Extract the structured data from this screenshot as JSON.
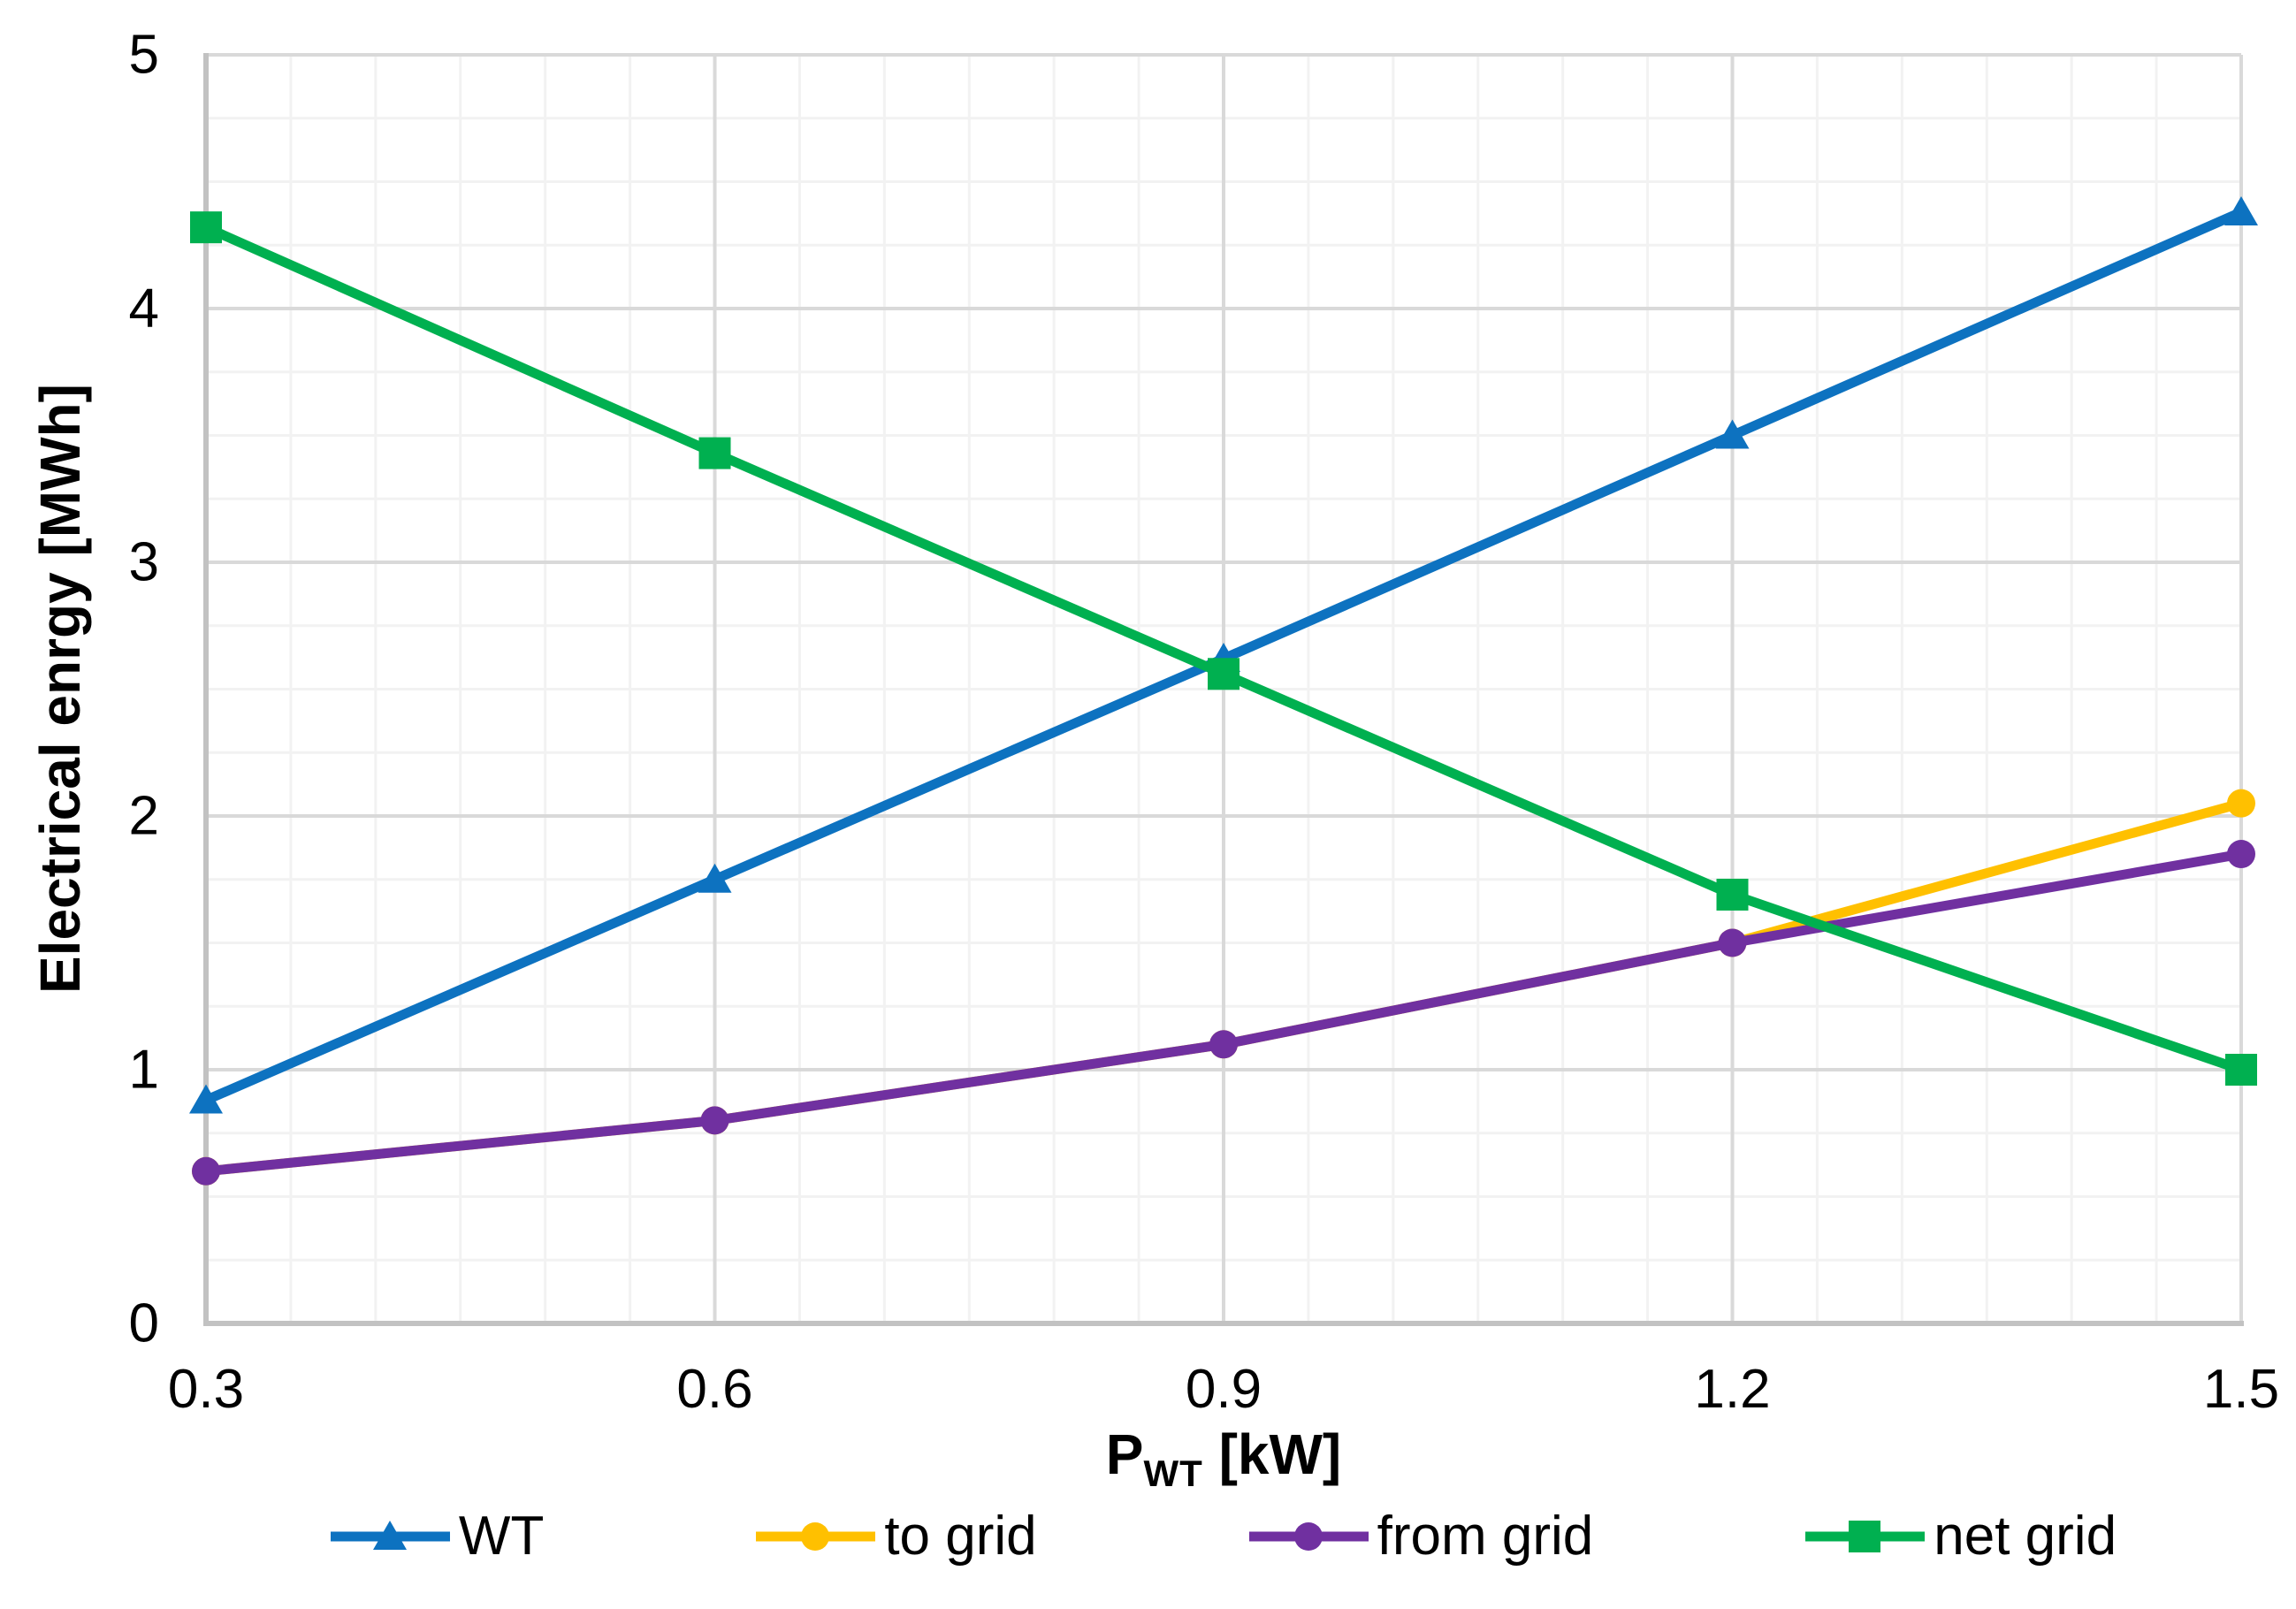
{
  "chart_data": {
    "type": "line",
    "title": "",
    "xlabel": "P_WT [kW]",
    "xlabel_parts": {
      "prefix": "P",
      "subscript": "WT",
      "suffix": " [kW]"
    },
    "ylabel": "Electrical enrgy [MWh]",
    "xlim": [
      0.3,
      1.5
    ],
    "ylim": [
      0,
      5
    ],
    "x_major_step": 0.3,
    "y_major_step": 1,
    "x_minor_step": 0.05,
    "y_minor_step": 0.25,
    "grid": "major+minor",
    "legend_position": "bottom",
    "x_ticks": [
      {
        "value": 0.3,
        "label": "0.3"
      },
      {
        "value": 0.6,
        "label": "0.6"
      },
      {
        "value": 0.9,
        "label": "0.9"
      },
      {
        "value": 1.2,
        "label": "1.2"
      },
      {
        "value": 1.5,
        "label": "1.5"
      }
    ],
    "y_ticks": [
      {
        "value": 0,
        "label": "0"
      },
      {
        "value": 1,
        "label": "1"
      },
      {
        "value": 2,
        "label": "2"
      },
      {
        "value": 3,
        "label": "3"
      },
      {
        "value": 4,
        "label": "4"
      },
      {
        "value": 5,
        "label": "5"
      }
    ],
    "x": [
      0.3,
      0.6,
      0.9,
      1.2,
      1.5
    ],
    "series": [
      {
        "name": "WT",
        "color": "#0d72c0",
        "marker": "triangle",
        "values": [
          0.88,
          1.75,
          2.62,
          3.5,
          4.38
        ]
      },
      {
        "name": "to grid",
        "color": "#ffc000",
        "marker": "circle",
        "values": [
          0.6,
          0.8,
          1.1,
          1.5,
          2.05
        ]
      },
      {
        "name": "from grid",
        "color": "#7030a0",
        "marker": "circle",
        "values": [
          0.6,
          0.8,
          1.1,
          1.5,
          1.85
        ]
      },
      {
        "name": "net grid",
        "color": "#00b050",
        "marker": "square",
        "values": [
          4.32,
          3.43,
          2.56,
          1.69,
          1.0
        ]
      }
    ],
    "style_colors": {
      "minor_grid": "#f2f2f2",
      "major_grid": "#d9d9d9",
      "axis_line": "#c2c2c2",
      "text": "#000000"
    }
  }
}
